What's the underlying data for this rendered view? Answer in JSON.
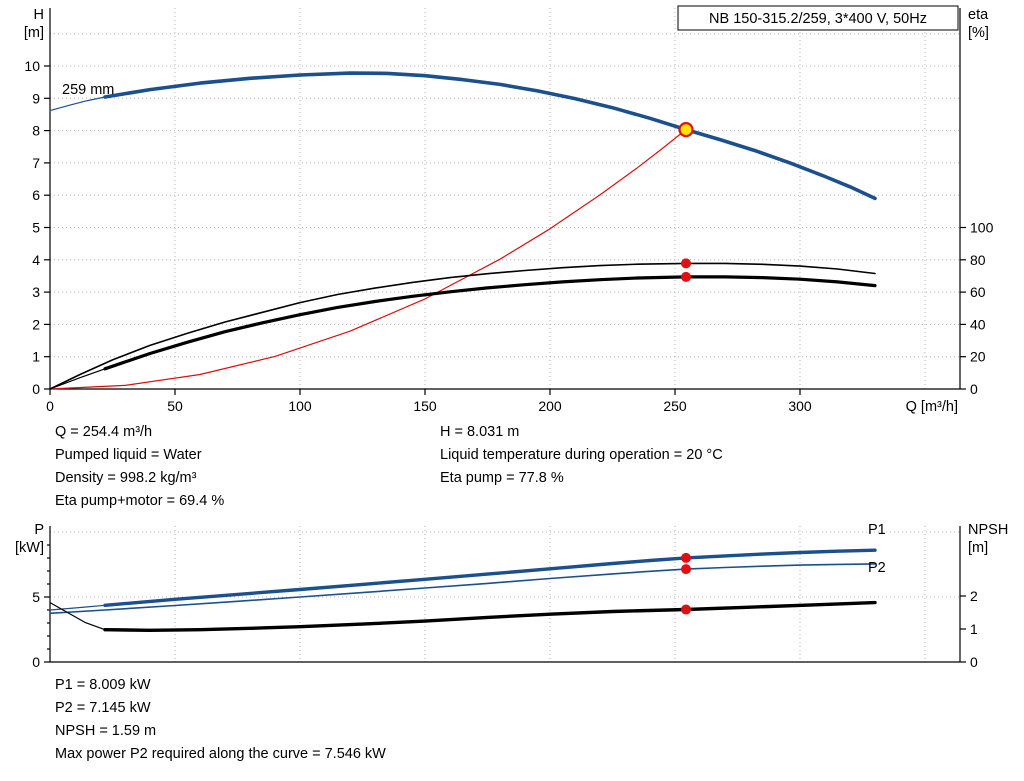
{
  "colors": {
    "blue": "#1c4f8e",
    "red": "#d41111",
    "black": "#000000",
    "grid": "#b4b4b4",
    "yellow": "#ffe400",
    "marker_red": "#e01010"
  },
  "duty_point": {
    "Q_m3h": 254.4,
    "H_m": 8.031,
    "eta_pump_pct": 77.8,
    "eta_pump_motor_pct": 69.4,
    "P1_kW": 8.009,
    "P2_kW": 7.145,
    "NPSH_m": 1.59,
    "max_P2_along_curve_kW": 7.546,
    "pumped_liquid": "Water",
    "density_kg_m3": 998.2,
    "liquid_temperature_C": 20,
    "impeller_diameter": "259 mm"
  },
  "annotations_top_left": [
    "Q = 254.4 m³/h",
    "Pumped liquid = Water",
    "Density = 998.2 kg/m³",
    "Eta pump+motor = 69.4 %"
  ],
  "annotations_top_right": [
    "H = 8.031 m",
    "Liquid temperature during operation = 20 °C",
    "Eta pump = 77.8 %"
  ],
  "annotations_bottom": [
    "P1 = 8.009 kW",
    "P2 = 7.145 kW",
    "NPSH = 1.59 m",
    "Max power P2 required along the curve = 7.546 kW"
  ],
  "chart_data": [
    {
      "type": "line",
      "title": "NB 150-315.2/259, 3*400 V, 50Hz",
      "xlabel": "Q [m³/h]",
      "ylabel": "H [m]",
      "y2label": "eta [%]",
      "xlim": [
        0,
        364
      ],
      "ylim": [
        0,
        11.8
      ],
      "y2lim": [
        0,
        100
      ],
      "grid": true,
      "labels": {
        "ylabel_1": "H",
        "ylabel_2": "[m]",
        "y2label_1": "eta",
        "y2label_2": "[%]",
        "xlabel": "Q [m³/h]",
        "impeller": "259 mm"
      },
      "xticks": [
        0,
        50,
        100,
        150,
        200,
        250,
        300
      ],
      "yticks": [
        0,
        1,
        2,
        3,
        4,
        5,
        6,
        7,
        8,
        9,
        10
      ],
      "y2ticks": [
        0,
        20,
        40,
        60,
        80,
        100
      ],
      "grid_x": [
        50,
        100,
        150,
        200,
        250,
        300,
        350
      ],
      "grid_y": [
        1,
        2,
        3,
        4,
        5,
        6,
        7,
        8,
        9,
        10,
        11
      ],
      "series": [
        {
          "name": "head-curve-lead",
          "axis": "y",
          "color": "blue",
          "width": 1.2,
          "points": [
            [
              0,
              8.62
            ],
            [
              8,
              8.79
            ],
            [
              15,
              8.93
            ],
            [
              22,
              9.04
            ]
          ]
        },
        {
          "name": "head-curve",
          "axis": "y",
          "color": "blue",
          "width": 3.6,
          "points": [
            [
              22,
              9.04
            ],
            [
              40,
              9.27
            ],
            [
              60,
              9.47
            ],
            [
              80,
              9.62
            ],
            [
              100,
              9.72
            ],
            [
              120,
              9.78
            ],
            [
              135,
              9.77
            ],
            [
              150,
              9.7
            ],
            [
              165,
              9.58
            ],
            [
              180,
              9.43
            ],
            [
              195,
              9.23
            ],
            [
              210,
              8.99
            ],
            [
              225,
              8.71
            ],
            [
              240,
              8.38
            ],
            [
              254.4,
              8.031
            ],
            [
              268,
              7.72
            ],
            [
              282,
              7.38
            ],
            [
              296,
              7.0
            ],
            [
              310,
              6.58
            ],
            [
              320,
              6.26
            ],
            [
              330,
              5.9
            ]
          ]
        },
        {
          "name": "system-curve",
          "axis": "y",
          "color": "red",
          "width": 1.2,
          "points": [
            [
              0,
              0
            ],
            [
              30,
              0.11
            ],
            [
              60,
              0.45
            ],
            [
              90,
              1.01
            ],
            [
              120,
              1.79
            ],
            [
              150,
              2.79
            ],
            [
              180,
              4.02
            ],
            [
              200,
              4.96
            ],
            [
              220,
              6.01
            ],
            [
              235,
              6.85
            ],
            [
              245,
              7.45
            ],
            [
              254.4,
              8.031
            ]
          ]
        },
        {
          "name": "eta-pump-curve",
          "axis": "y2",
          "color": "black",
          "width": 1.6,
          "points": [
            [
              0,
              0
            ],
            [
              12,
              9
            ],
            [
              25,
              18
            ],
            [
              40,
              27
            ],
            [
              55,
              34.5
            ],
            [
              70,
              41.5
            ],
            [
              85,
              47.5
            ],
            [
              100,
              53.5
            ],
            [
              115,
              58.5
            ],
            [
              130,
              62.5
            ],
            [
              145,
              66
            ],
            [
              160,
              69
            ],
            [
              175,
              71.4
            ],
            [
              190,
              73.4
            ],
            [
              205,
              75.1
            ],
            [
              220,
              76.4
            ],
            [
              235,
              77.3
            ],
            [
              254.4,
              77.8
            ],
            [
              270,
              77.8
            ],
            [
              285,
              77.2
            ],
            [
              300,
              76.1
            ],
            [
              315,
              74.3
            ],
            [
              330,
              71.5
            ]
          ]
        },
        {
          "name": "eta-pump-motor-lead",
          "axis": "y2",
          "color": "black",
          "width": 1.2,
          "points": [
            [
              0,
              0
            ],
            [
              12,
              7
            ],
            [
              22,
              12.5
            ]
          ]
        },
        {
          "name": "eta-pump-motor-curve",
          "axis": "y2",
          "color": "black",
          "width": 3.2,
          "points": [
            [
              22,
              12.5
            ],
            [
              40,
              22
            ],
            [
              55,
              29
            ],
            [
              70,
              35.5
            ],
            [
              85,
              41
            ],
            [
              100,
              46
            ],
            [
              115,
              50.5
            ],
            [
              130,
              54.2
            ],
            [
              145,
              57.4
            ],
            [
              160,
              60.2
            ],
            [
              175,
              62.6
            ],
            [
              190,
              64.6
            ],
            [
              205,
              66.3
            ],
            [
              220,
              67.7
            ],
            [
              235,
              68.7
            ],
            [
              254.4,
              69.4
            ],
            [
              270,
              69.4
            ],
            [
              285,
              69
            ],
            [
              300,
              68
            ],
            [
              315,
              66.3
            ],
            [
              330,
              64
            ]
          ]
        }
      ],
      "markers": [
        {
          "q": 254.4,
          "v": 77.8,
          "axis": "y2",
          "style": "dot"
        },
        {
          "q": 254.4,
          "v": 69.4,
          "axis": "y2",
          "style": "dot"
        },
        {
          "q": 254.4,
          "v": 8.031,
          "axis": "y",
          "style": "duty"
        }
      ]
    },
    {
      "type": "line",
      "ylabel": "P [kW]",
      "y2label": "NPSH [m]",
      "xlim": [
        0,
        364
      ],
      "ylim": [
        0,
        10.4
      ],
      "y2lim": [
        0,
        4.1
      ],
      "grid": true,
      "labels": {
        "ylabel_1": "P",
        "ylabel_2": "[kW]",
        "y2label_1": "NPSH",
        "y2label_2": "[m]",
        "s1": "P1",
        "s2": "P2"
      },
      "xticks": [],
      "yticks": [
        0,
        5
      ],
      "yticks_minor": [
        1,
        2,
        3,
        4,
        6,
        7,
        8,
        9
      ],
      "y2ticks": [
        0,
        1,
        2
      ],
      "grid_x": [
        50,
        100,
        150,
        200,
        250,
        300,
        350
      ],
      "grid_y": [
        5,
        10
      ],
      "series": [
        {
          "name": "p1-curve-lead",
          "axis": "y",
          "color": "blue",
          "width": 1.2,
          "points": [
            [
              0,
              4.0
            ],
            [
              8,
              4.12
            ],
            [
              15,
              4.24
            ],
            [
              22,
              4.36
            ]
          ]
        },
        {
          "name": "p1-curve",
          "axis": "y",
          "color": "blue",
          "width": 3.4,
          "points": [
            [
              22,
              4.36
            ],
            [
              50,
              4.82
            ],
            [
              75,
              5.2
            ],
            [
              100,
              5.58
            ],
            [
              125,
              5.97
            ],
            [
              150,
              6.36
            ],
            [
              175,
              6.76
            ],
            [
              200,
              7.17
            ],
            [
              225,
              7.58
            ],
            [
              240,
              7.81
            ],
            [
              254.4,
              8.009
            ],
            [
              270,
              8.16
            ],
            [
              285,
              8.3
            ],
            [
              300,
              8.42
            ],
            [
              315,
              8.52
            ],
            [
              330,
              8.6
            ]
          ]
        },
        {
          "name": "p2-curve",
          "axis": "y",
          "color": "blue",
          "width": 1.6,
          "points": [
            [
              0,
              3.75
            ],
            [
              22,
              4.0
            ],
            [
              50,
              4.35
            ],
            [
              75,
              4.67
            ],
            [
              100,
              5.0
            ],
            [
              125,
              5.34
            ],
            [
              150,
              5.69
            ],
            [
              175,
              6.05
            ],
            [
              200,
              6.42
            ],
            [
              225,
              6.78
            ],
            [
              240,
              6.98
            ],
            [
              254.4,
              7.145
            ],
            [
              270,
              7.27
            ],
            [
              285,
              7.37
            ],
            [
              300,
              7.45
            ],
            [
              315,
              7.51
            ],
            [
              330,
              7.546
            ]
          ]
        },
        {
          "name": "npsh-curve-lead",
          "axis": "y2",
          "color": "black",
          "width": 1.2,
          "points": [
            [
              0,
              1.8
            ],
            [
              7,
              1.5
            ],
            [
              14,
              1.2
            ],
            [
              22,
              0.98
            ]
          ]
        },
        {
          "name": "npsh-curve",
          "axis": "y2",
          "color": "black",
          "width": 3.4,
          "points": [
            [
              22,
              0.98
            ],
            [
              40,
              0.96
            ],
            [
              60,
              0.98
            ],
            [
              80,
              1.02
            ],
            [
              100,
              1.07
            ],
            [
              125,
              1.15
            ],
            [
              150,
              1.24
            ],
            [
              175,
              1.35
            ],
            [
              200,
              1.45
            ],
            [
              225,
              1.53
            ],
            [
              254.4,
              1.59
            ],
            [
              280,
              1.66
            ],
            [
              305,
              1.73
            ],
            [
              330,
              1.8
            ]
          ]
        }
      ],
      "markers": [
        {
          "q": 254.4,
          "v": 8.009,
          "axis": "y",
          "style": "dot"
        },
        {
          "q": 254.4,
          "v": 7.145,
          "axis": "y",
          "style": "dot"
        },
        {
          "q": 254.4,
          "v": 1.59,
          "axis": "y2",
          "style": "dot"
        }
      ]
    }
  ]
}
